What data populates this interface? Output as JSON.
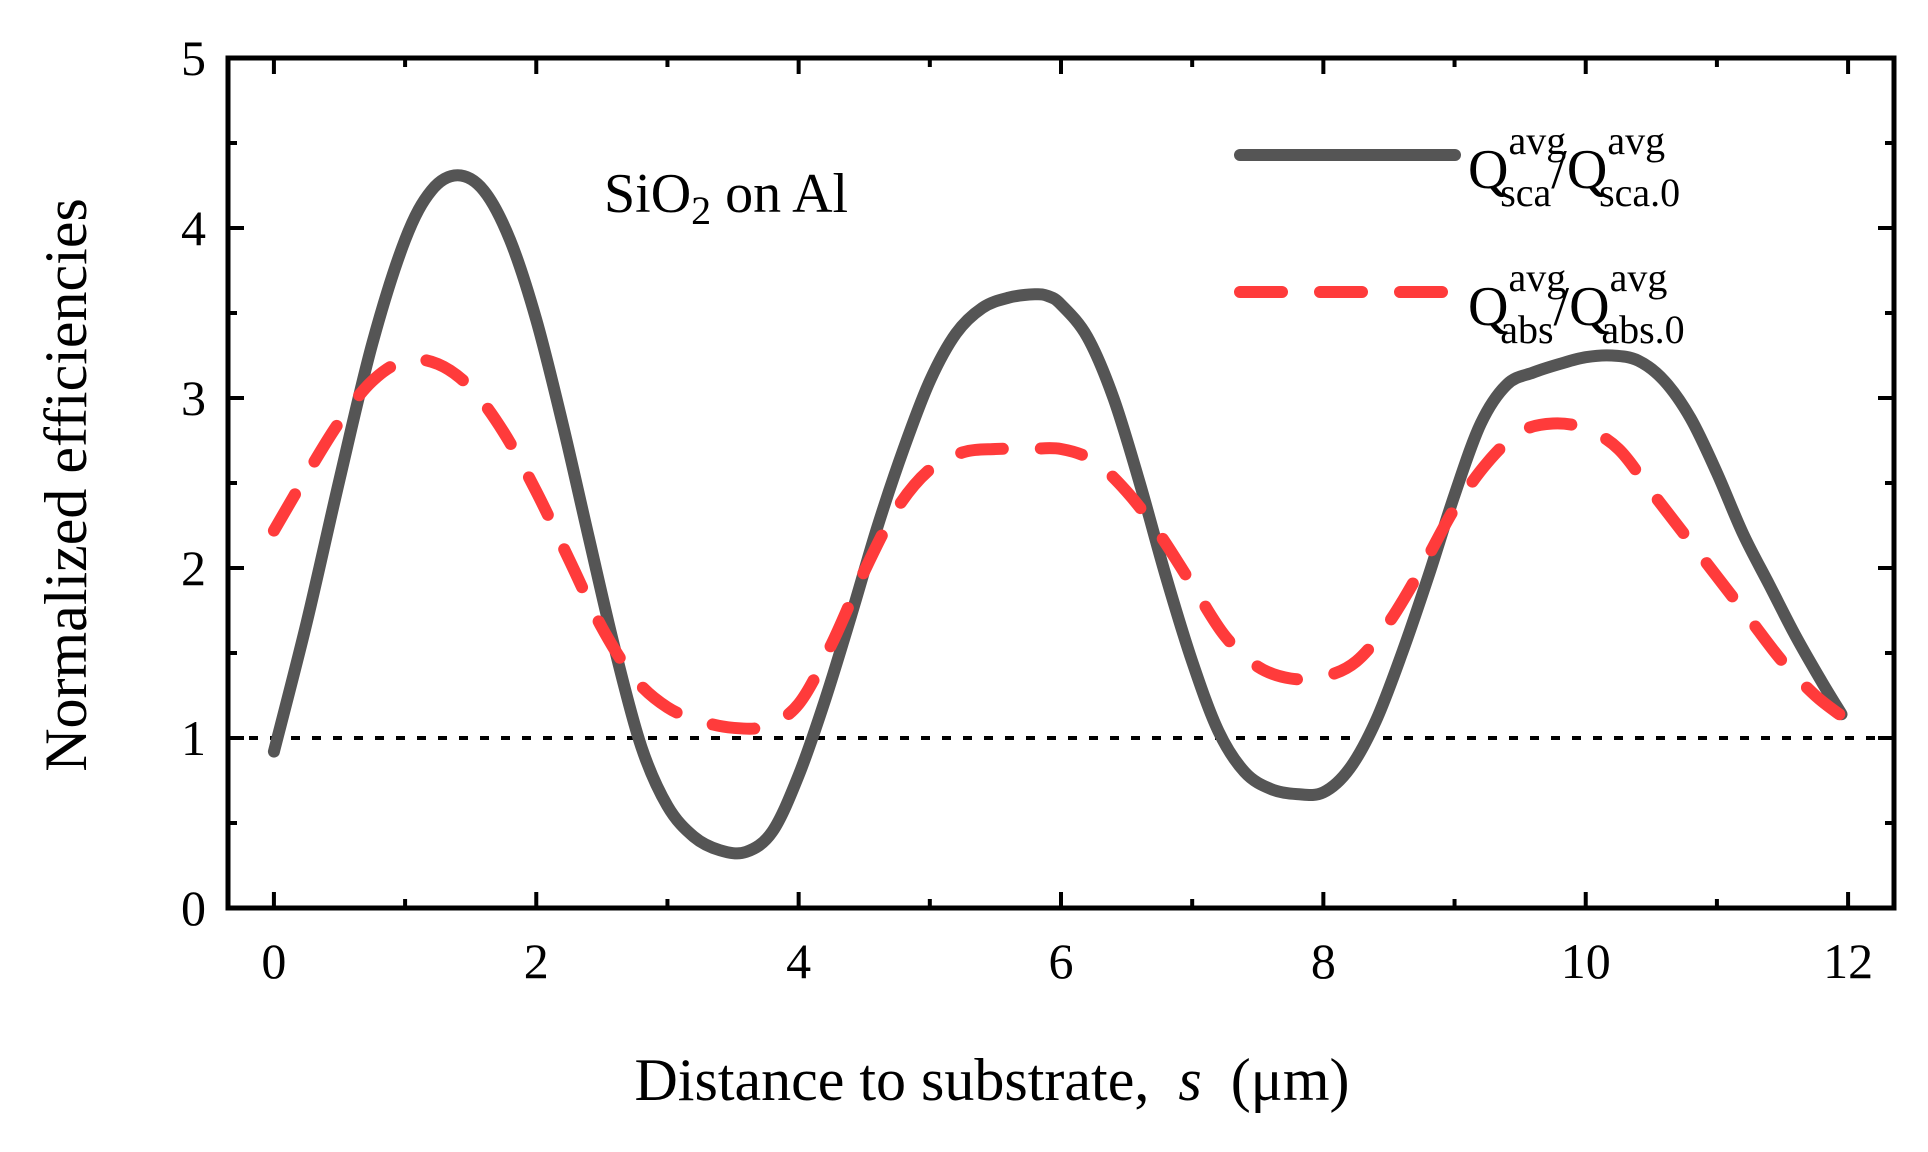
{
  "chart_data": {
    "type": "line",
    "title": "",
    "xlabel": "Distance to substrate,",
    "xlabel_var": "s",
    "xlabel_unit": "(μm)",
    "ylabel": "Normalized efficiencies",
    "xlim": [
      -0.35,
      12.35
    ],
    "ylim": [
      0,
      5
    ],
    "xticks": [
      0,
      2,
      4,
      6,
      8,
      10,
      12
    ],
    "xtick_labels": [
      "0",
      "2",
      "4",
      "6",
      "8",
      "10",
      "12"
    ],
    "xminor": [
      1,
      3,
      5,
      7,
      9,
      11
    ],
    "yticks": [
      0,
      1,
      2,
      3,
      4,
      5
    ],
    "ytick_labels": [
      "0",
      "1",
      "2",
      "3",
      "4",
      "5"
    ],
    "yminor": [
      0.5,
      1.5,
      2.5,
      3.5,
      4.5
    ],
    "grid": false,
    "legend_position": "top-right",
    "annotation": {
      "main": "SiO",
      "sub": "2",
      "rest": " on Al"
    },
    "reference_line": {
      "y": 1,
      "style": "dotted",
      "color": "#000000"
    },
    "series": [
      {
        "name": "Qsca_avg/Qsca0_avg",
        "legend": {
          "q": "Q",
          "sup": "avg",
          "sub": "sca",
          "slash": "/",
          "q2": "Q",
          "sup2": "avg",
          "sub2": "sca.0"
        },
        "style": "solid",
        "color": "#555555",
        "x": [
          0,
          0.25,
          0.5,
          0.75,
          1.0,
          1.2,
          1.4,
          1.6,
          1.8,
          2.0,
          2.2,
          2.4,
          2.6,
          2.8,
          3.0,
          3.2,
          3.4,
          3.6,
          3.8,
          4.0,
          4.2,
          4.4,
          4.6,
          4.8,
          5.0,
          5.2,
          5.4,
          5.6,
          5.8,
          5.9,
          6.0,
          6.2,
          6.4,
          6.6,
          6.8,
          7.0,
          7.2,
          7.4,
          7.6,
          7.8,
          8.0,
          8.2,
          8.4,
          8.6,
          8.8,
          9.0,
          9.2,
          9.4,
          9.6,
          9.8,
          10.0,
          10.2,
          10.4,
          10.6,
          10.8,
          11.0,
          11.2,
          11.4,
          11.6,
          11.8,
          11.95
        ],
        "values": [
          0.92,
          1.68,
          2.52,
          3.32,
          3.93,
          4.22,
          4.31,
          4.22,
          3.93,
          3.46,
          2.85,
          2.18,
          1.52,
          0.95,
          0.6,
          0.42,
          0.34,
          0.33,
          0.45,
          0.78,
          1.22,
          1.72,
          2.24,
          2.7,
          3.1,
          3.38,
          3.53,
          3.59,
          3.61,
          3.6,
          3.55,
          3.36,
          3.0,
          2.5,
          1.95,
          1.45,
          1.04,
          0.8,
          0.7,
          0.67,
          0.68,
          0.82,
          1.1,
          1.5,
          1.95,
          2.43,
          2.85,
          3.08,
          3.15,
          3.2,
          3.24,
          3.25,
          3.22,
          3.1,
          2.88,
          2.56,
          2.2,
          1.9,
          1.6,
          1.33,
          1.14
        ]
      },
      {
        "name": "Qabs_avg/Qabs0_avg",
        "legend": {
          "q": "Q",
          "sup": "avg",
          "sub": "abs",
          "slash": "/",
          "q2": "Q",
          "sup2": "avg",
          "sub2": "abs.0"
        },
        "style": "dashed",
        "color": "#ff3b3b",
        "x": [
          0,
          0.25,
          0.5,
          0.75,
          1.0,
          1.25,
          1.5,
          1.75,
          2.0,
          2.25,
          2.5,
          2.75,
          3.0,
          3.25,
          3.5,
          3.75,
          4.0,
          4.25,
          4.5,
          4.75,
          5.0,
          5.25,
          5.5,
          5.75,
          6.0,
          6.25,
          6.5,
          6.75,
          7.0,
          7.25,
          7.5,
          7.75,
          8.0,
          8.25,
          8.5,
          8.75,
          9.0,
          9.25,
          9.5,
          9.75,
          10.0,
          10.25,
          10.5,
          10.75,
          11.0,
          11.25,
          11.5,
          11.75,
          11.95
        ],
        "values": [
          2.22,
          2.55,
          2.86,
          3.1,
          3.22,
          3.2,
          3.06,
          2.8,
          2.45,
          2.05,
          1.65,
          1.35,
          1.18,
          1.1,
          1.06,
          1.07,
          1.2,
          1.55,
          1.98,
          2.35,
          2.58,
          2.68,
          2.7,
          2.7,
          2.7,
          2.63,
          2.45,
          2.2,
          1.9,
          1.6,
          1.42,
          1.35,
          1.36,
          1.45,
          1.68,
          2.0,
          2.35,
          2.62,
          2.8,
          2.85,
          2.82,
          2.7,
          2.45,
          2.2,
          1.95,
          1.7,
          1.45,
          1.25,
          1.13
        ]
      }
    ]
  }
}
